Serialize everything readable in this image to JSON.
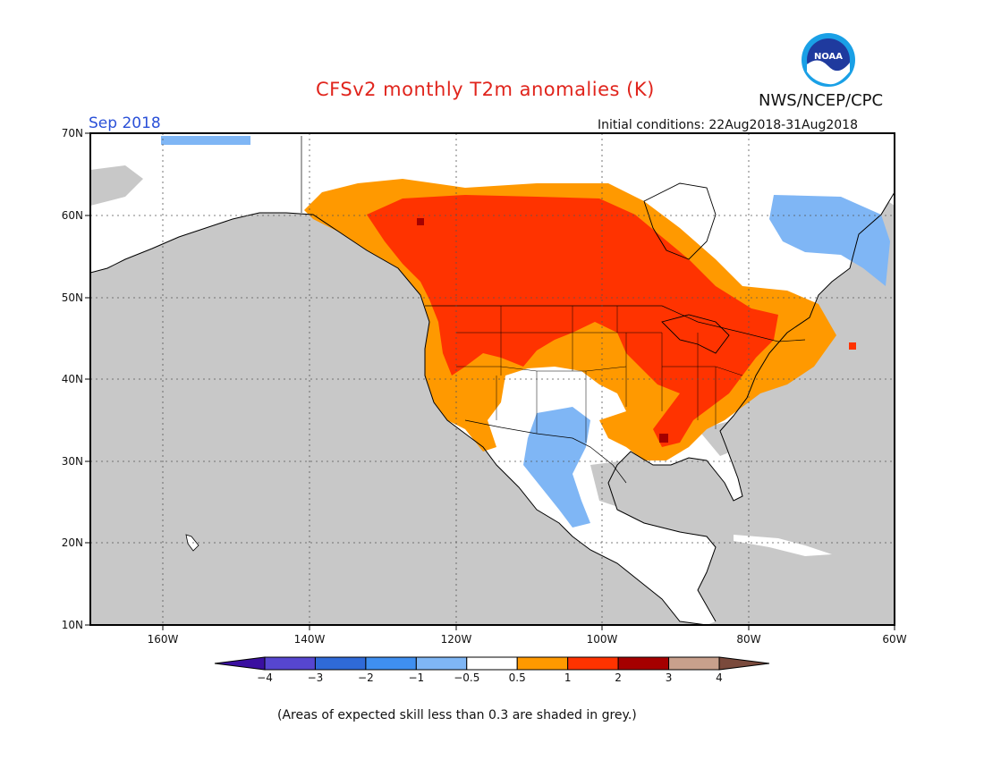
{
  "header": {
    "title": "CFSv2 monthly T2m anomalies (K)",
    "agency": "NWS/NCEP/CPC",
    "logo_text": "NOAA",
    "month": "Sep 2018",
    "initial_conditions": "Initial conditions: 22Aug2018-31Aug2018"
  },
  "map": {
    "lat_labels": [
      "70N",
      "60N",
      "50N",
      "40N",
      "30N",
      "20N",
      "10N"
    ],
    "lon_labels": [
      "160W",
      "140W",
      "120W",
      "100W",
      "80W",
      "60W"
    ],
    "ocean_color": "#c8c8c8",
    "regions": [
      {
        "name": "canada-warm",
        "category": "1 to 2"
      },
      {
        "name": "northern-us-warm",
        "category": "0.5 to 1"
      },
      {
        "name": "southwest-cool",
        "category": "-1 to -0.5"
      },
      {
        "name": "labrador-cool",
        "category": "-1 to -0.5"
      },
      {
        "name": "alaska-neutral",
        "category": "-0.5 to 0.5"
      }
    ]
  },
  "colorbar": {
    "colors": [
      "#3a0fa0",
      "#5646d0",
      "#2f6ad8",
      "#3f8ff0",
      "#7fb6f5",
      "#ffffff",
      "#ff9900",
      "#ff3300",
      "#a50000",
      "#c8a08c",
      "#7a4a3c"
    ],
    "labels": [
      "−4",
      "−3",
      "−2",
      "−1",
      "−0.5",
      "0.5",
      "1",
      "2",
      "3",
      "4"
    ]
  },
  "footnote": "(Areas of expected skill less than 0.3 are shaded in grey.)"
}
